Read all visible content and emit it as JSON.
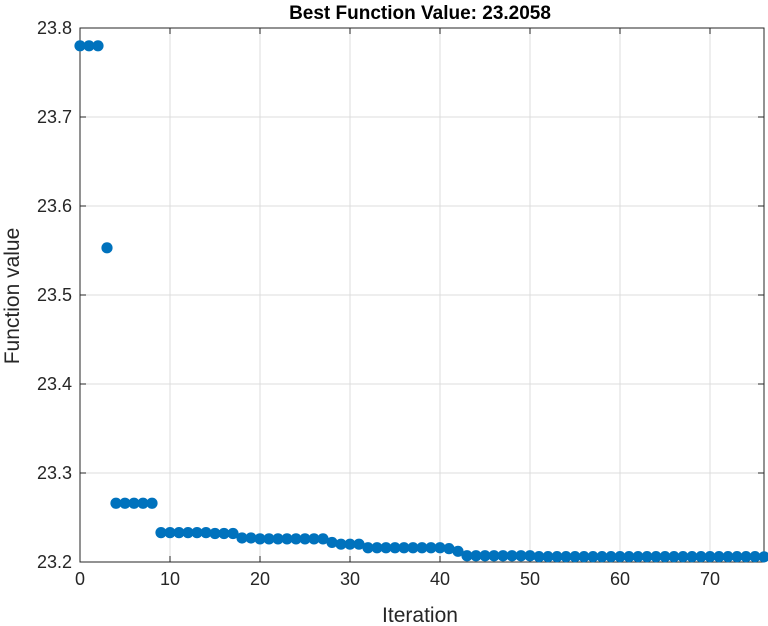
{
  "chart_data": {
    "type": "scatter",
    "title": "Best Function Value: 23.2058",
    "xlabel": "Iteration",
    "ylabel": "Function value",
    "xlim": [
      0,
      76
    ],
    "ylim": [
      23.2,
      23.8
    ],
    "xticks": [
      0,
      10,
      20,
      30,
      40,
      50,
      60,
      70
    ],
    "yticks": [
      23.2,
      23.3,
      23.4,
      23.5,
      23.6,
      23.7,
      23.8
    ],
    "ytick_labels": [
      "23.2",
      "23.3",
      "23.4",
      "23.5",
      "23.6",
      "23.7",
      "23.8"
    ],
    "grid": true,
    "marker_color": "#0072BD",
    "x": [
      0,
      1,
      2,
      3,
      4,
      5,
      6,
      7,
      8,
      9,
      10,
      11,
      12,
      13,
      14,
      15,
      16,
      17,
      18,
      19,
      20,
      21,
      22,
      23,
      24,
      25,
      26,
      27,
      28,
      29,
      30,
      31,
      32,
      33,
      34,
      35,
      36,
      37,
      38,
      39,
      40,
      41,
      42,
      43,
      44,
      45,
      46,
      47,
      48,
      49,
      50,
      51,
      52,
      53,
      54,
      55,
      56,
      57,
      58,
      59,
      60,
      61,
      62,
      63,
      64,
      65,
      66,
      67,
      68,
      69,
      70,
      71,
      72,
      73,
      74,
      75,
      76
    ],
    "y": [
      23.78,
      23.78,
      23.78,
      23.553,
      23.266,
      23.266,
      23.266,
      23.266,
      23.266,
      23.233,
      23.233,
      23.233,
      23.233,
      23.233,
      23.233,
      23.232,
      23.232,
      23.232,
      23.227,
      23.227,
      23.226,
      23.226,
      23.226,
      23.226,
      23.226,
      23.226,
      23.226,
      23.226,
      23.222,
      23.22,
      23.22,
      23.22,
      23.216,
      23.216,
      23.216,
      23.216,
      23.216,
      23.216,
      23.216,
      23.216,
      23.216,
      23.215,
      23.212,
      23.207,
      23.207,
      23.207,
      23.207,
      23.207,
      23.207,
      23.207,
      23.207,
      23.206,
      23.206,
      23.206,
      23.206,
      23.206,
      23.206,
      23.206,
      23.206,
      23.206,
      23.206,
      23.206,
      23.206,
      23.206,
      23.206,
      23.206,
      23.206,
      23.206,
      23.206,
      23.206,
      23.206,
      23.206,
      23.206,
      23.206,
      23.206,
      23.206,
      23.2058
    ]
  }
}
